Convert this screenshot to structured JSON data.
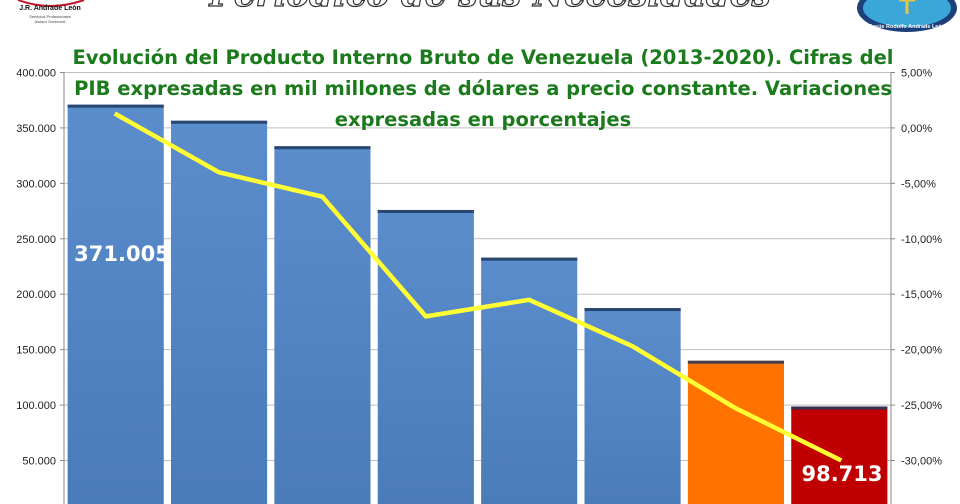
{
  "header": {
    "banner_text": "Periódico de sus Necesidades",
    "left_logo": {
      "name": "J.R. Andrade León",
      "line1": "Servicios Profesionales",
      "line2": "Asesor Gerencial"
    },
    "right_logo": {
      "name": "Jesús Rodolfo Andrade León"
    }
  },
  "chart_data": {
    "type": "bar",
    "title_lines": [
      "Evolución del Producto Interno Bruto de Venezuela (2013-2020). Cifras del",
      "PIB expresadas en mil millones de dólares a precio constante. Variaciones",
      "expresadas en porcentajes"
    ],
    "categories": [
      "",
      "",
      "",
      "",
      "",
      "",
      "",
      ""
    ],
    "series": [
      {
        "values": [
          371005,
          356500,
          333500,
          276000,
          233000,
          187500,
          140000,
          98713
        ]
      }
    ],
    "line_series": {
      "axis": "right",
      "values": [
        1.3,
        -4.0,
        -6.2,
        -17.0,
        -15.5,
        -19.7,
        -25.3,
        -30.0
      ]
    },
    "bar_colors": [
      "#4f81bd",
      "#4f81bd",
      "#4f81bd",
      "#4f81bd",
      "#4f81bd",
      "#4f81bd",
      "#ff7200",
      "#c00000"
    ],
    "line_color": "#ffff33",
    "data_labels": {
      "first": "371.005",
      "last": "98.713"
    },
    "y_left": {
      "ticks": [
        50000,
        100000,
        150000,
        200000,
        250000,
        300000,
        350000,
        400000
      ],
      "tick_labels": [
        "50.000",
        "100.000",
        "150.000",
        "200.000",
        "250.000",
        "300.000",
        "350.000",
        "400.000"
      ],
      "ylim": [
        0,
        400000
      ]
    },
    "y_right": {
      "ticks": [
        5,
        0,
        -5,
        -10,
        -15,
        -20,
        -25,
        -30
      ],
      "tick_labels": [
        "5,00%",
        "0,00%",
        "-5,00%",
        "-10,00%",
        "-15,00%",
        "-20,00%",
        "-25,00%",
        "-30,00%"
      ],
      "ylim": [
        -35,
        5
      ]
    },
    "grid": true,
    "legend": "none"
  }
}
